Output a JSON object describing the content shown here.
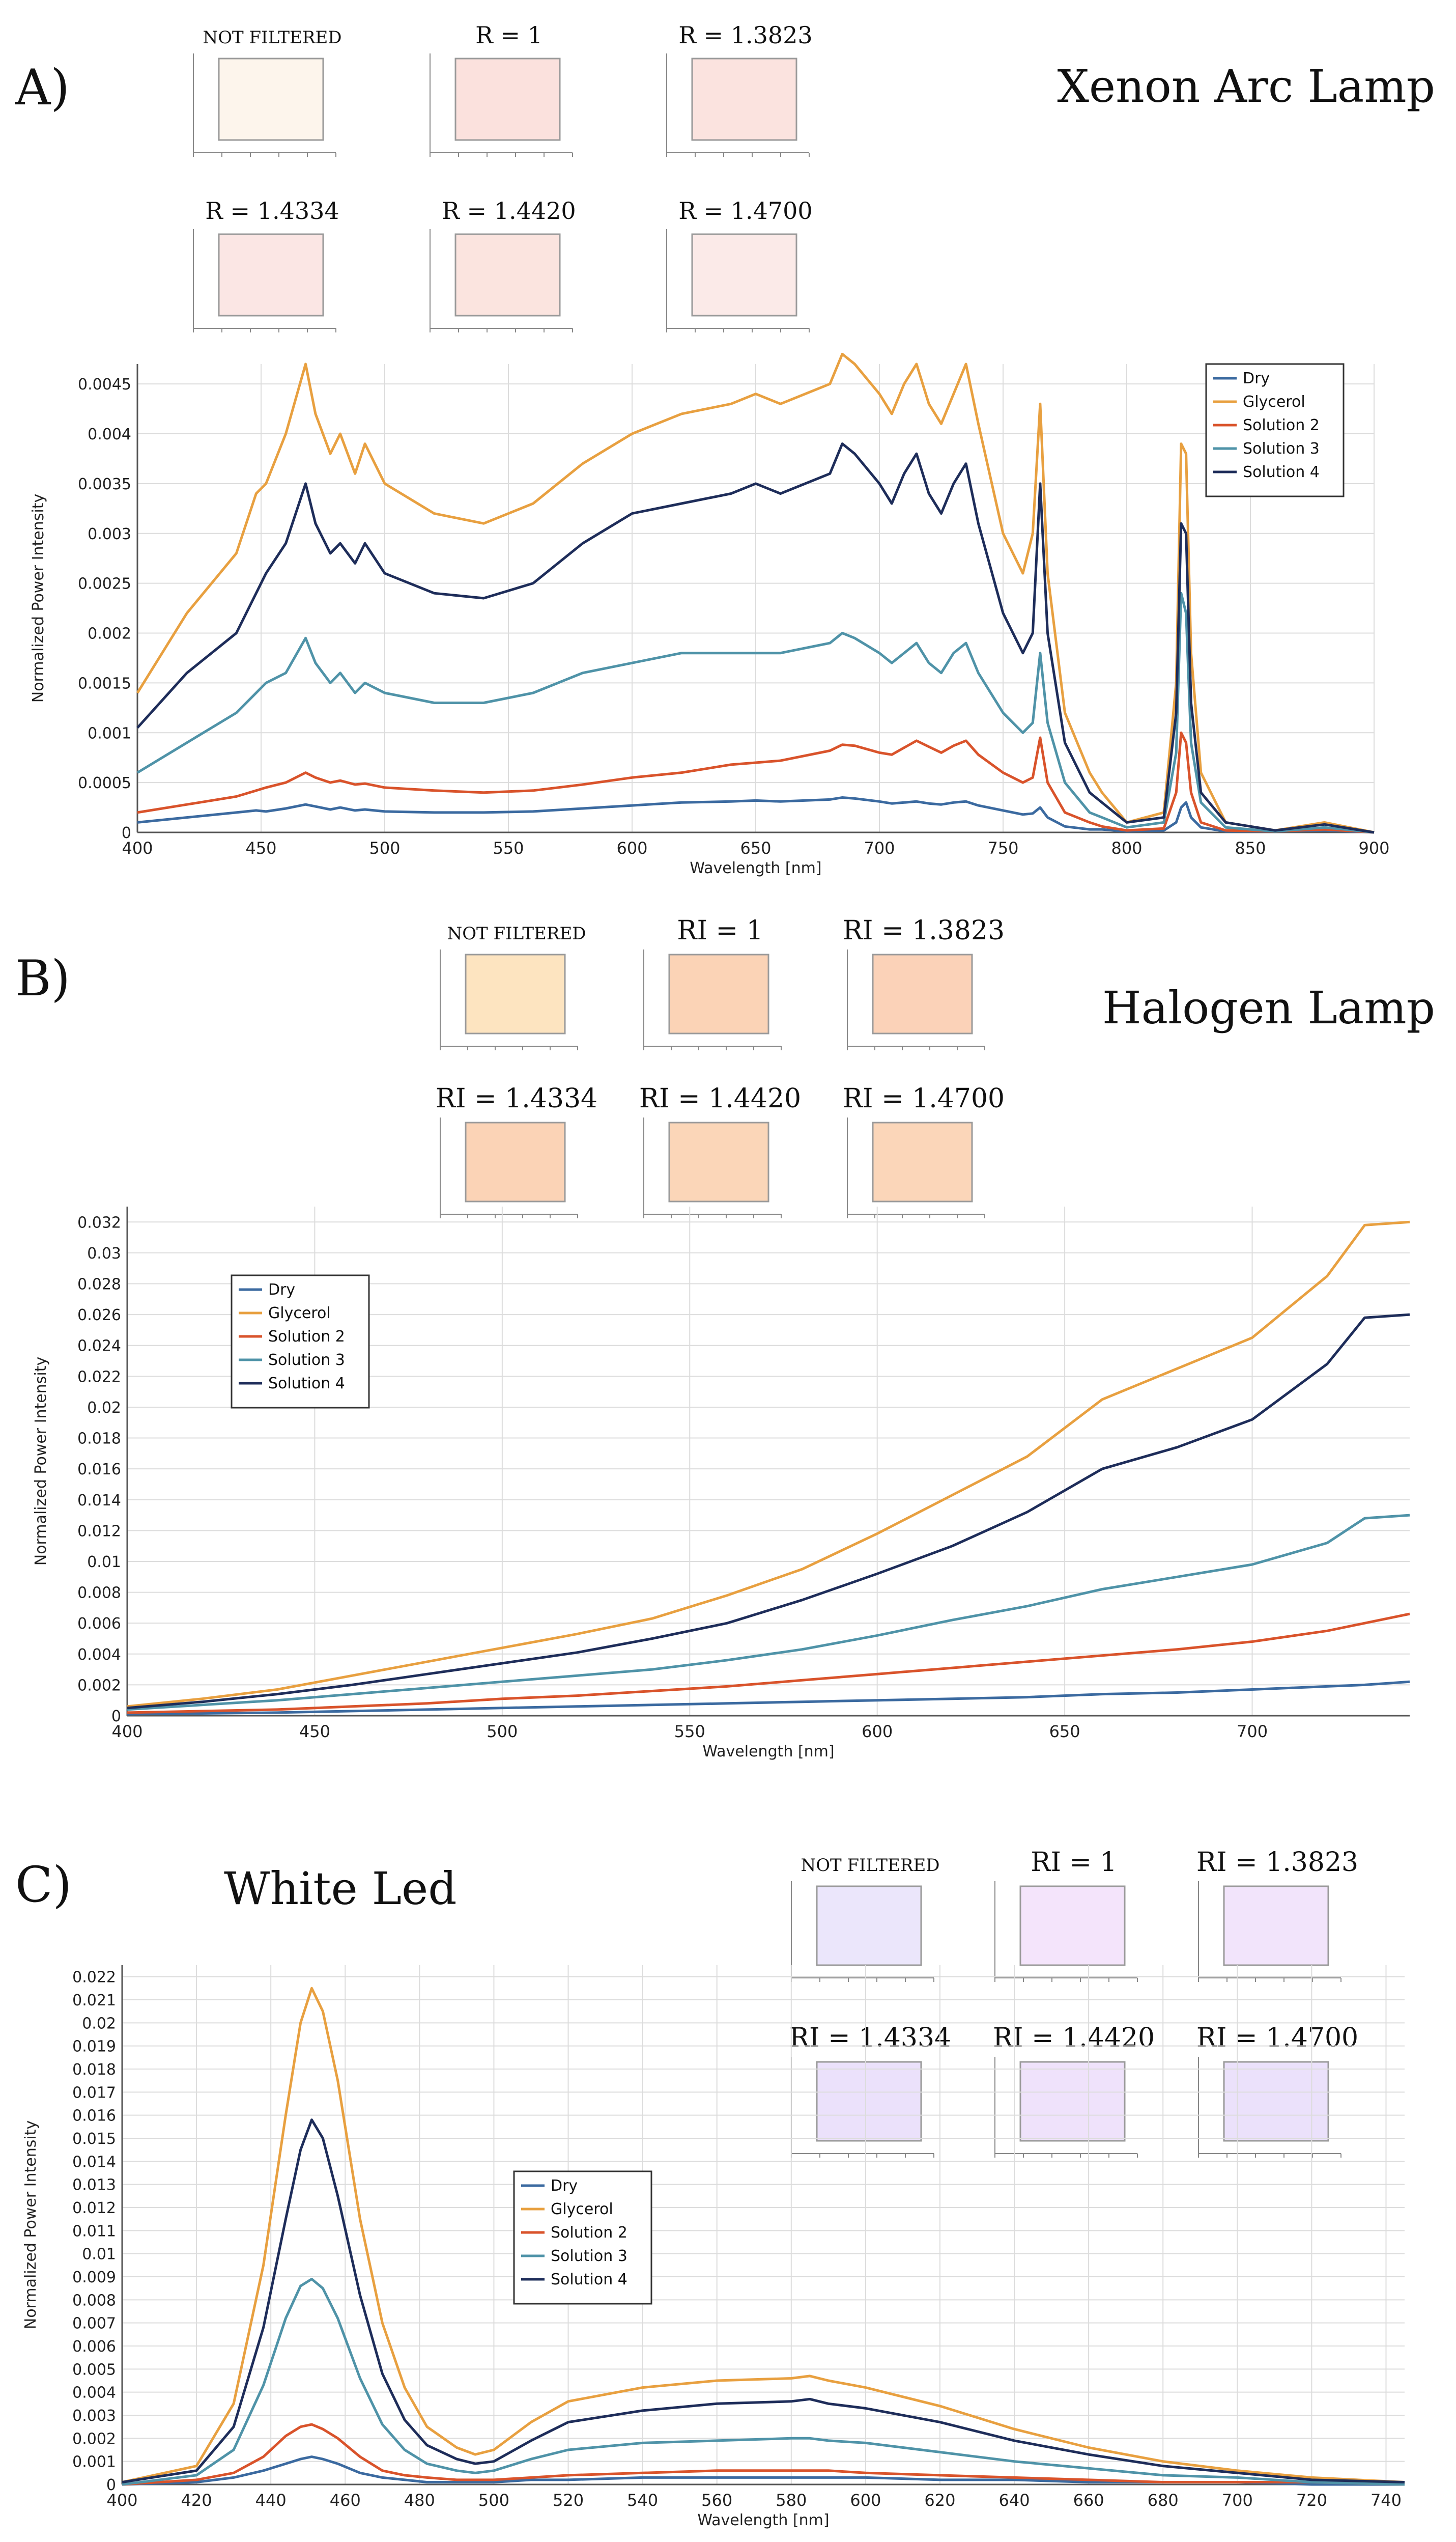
{
  "panels": [
    {
      "id": "A",
      "panel_label": "A)",
      "lamp_title": "Xenon Arc Lamp",
      "swatches": [
        {
          "label": "NOT FILTERED",
          "color": "#fdf5ec"
        },
        {
          "label": "R = 1",
          "color": "#fbe1dd"
        },
        {
          "label": "R = 1.3823",
          "color": "#fbe3df"
        },
        {
          "label": "R = 1.4334",
          "color": "#fbe6e4"
        },
        {
          "label": "R = 1.4420",
          "color": "#fbe4df"
        },
        {
          "label": "R = 1.4700",
          "color": "#fbeae8"
        }
      ]
    },
    {
      "id": "B",
      "panel_label": "B)",
      "lamp_title": "Halogen Lamp",
      "swatches": [
        {
          "label": "NOT FILTERED",
          "color": "#fde4c0"
        },
        {
          "label": "RI = 1",
          "color": "#fbd3b6"
        },
        {
          "label": "RI = 1.3823",
          "color": "#fbd2b8"
        },
        {
          "label": "RI = 1.4334",
          "color": "#fbd3b6"
        },
        {
          "label": "RI = 1.4420",
          "color": "#fbd6b8"
        },
        {
          "label": "RI = 1.4700",
          "color": "#fbd6b9"
        }
      ]
    },
    {
      "id": "C",
      "panel_label": "C)",
      "lamp_title": "White Led",
      "swatches": [
        {
          "label": "NOT FILTERED",
          "color": "#ebe6fb"
        },
        {
          "label": "RI = 1",
          "color": "#f4e4fb"
        },
        {
          "label": "RI = 1.3823",
          "color": "#f2e4fb"
        },
        {
          "label": "RI = 1.4334",
          "color": "#ebe1fb"
        },
        {
          "label": "RI = 1.4420",
          "color": "#efe2fb"
        },
        {
          "label": "RI = 1.4700",
          "color": "#ebe1fb"
        }
      ]
    }
  ],
  "series_colors": {
    "Dry": "#3b6aa0",
    "Glycerol": "#e8a040",
    "Solution 2": "#d9532b",
    "Solution 3": "#4f93a8",
    "Solution 4": "#1e2d5a"
  },
  "chart_data": [
    {
      "type": "line",
      "panel": "A",
      "title": "",
      "xlabel": "Wavelength [nm]",
      "ylabel": "Normalized Power Intensity",
      "xlim": [
        400,
        900
      ],
      "ylim": [
        0,
        0.0047
      ],
      "x_ticks": [
        "400",
        "450",
        "500",
        "550",
        "600",
        "650",
        "700",
        "750",
        "800",
        "850",
        "900"
      ],
      "y_ticks": [
        "0",
        "0.0005",
        "0.001",
        "0.0015",
        "0.002",
        "0.0025",
        "0.003",
        "0.0035",
        "0.004",
        "0.0045"
      ],
      "legend": [
        "Dry",
        "Glycerol",
        "Solution 2",
        "Solution 3",
        "Solution 4"
      ],
      "legend_position": "top-right",
      "x": [
        400,
        420,
        440,
        448,
        452,
        460,
        468,
        472,
        478,
        482,
        488,
        492,
        500,
        520,
        540,
        560,
        580,
        600,
        620,
        640,
        650,
        660,
        680,
        685,
        690,
        700,
        705,
        710,
        715,
        720,
        725,
        730,
        735,
        740,
        750,
        758,
        762,
        765,
        768,
        775,
        785,
        790,
        800,
        815,
        820,
        822,
        824,
        826,
        830,
        840,
        860,
        880,
        900
      ],
      "series": [
        {
          "name": "Dry",
          "values": [
            0.0001,
            0.00015,
            0.0002,
            0.00022,
            0.00021,
            0.00024,
            0.00028,
            0.00026,
            0.00023,
            0.00025,
            0.00022,
            0.00023,
            0.00021,
            0.0002,
            0.0002,
            0.00021,
            0.00024,
            0.00027,
            0.0003,
            0.00031,
            0.00032,
            0.00031,
            0.00033,
            0.00035,
            0.00034,
            0.00031,
            0.00029,
            0.0003,
            0.00031,
            0.00029,
            0.00028,
            0.0003,
            0.00031,
            0.00027,
            0.00022,
            0.00018,
            0.00019,
            0.00025,
            0.00015,
            6e-05,
            3e-05,
            3e-05,
            1e-05,
            2e-05,
            0.0001,
            0.00025,
            0.0003,
            0.00015,
            5e-05,
            1e-05,
            1e-05,
            2e-05,
            0
          ]
        },
        {
          "name": "Glycerol",
          "values": [
            0.0014,
            0.0022,
            0.0028,
            0.0034,
            0.0035,
            0.004,
            0.0047,
            0.0042,
            0.0038,
            0.004,
            0.0036,
            0.0039,
            0.0035,
            0.0032,
            0.0031,
            0.0033,
            0.0037,
            0.004,
            0.0042,
            0.0043,
            0.0044,
            0.0043,
            0.0045,
            0.0048,
            0.0047,
            0.0044,
            0.0042,
            0.0045,
            0.0047,
            0.0043,
            0.0041,
            0.0044,
            0.0047,
            0.0041,
            0.003,
            0.0026,
            0.003,
            0.0043,
            0.0026,
            0.0012,
            0.0006,
            0.0004,
            0.0001,
            0.0002,
            0.0015,
            0.0039,
            0.0038,
            0.0018,
            0.0006,
            0.0001,
            2e-05,
            0.0001,
            0
          ]
        },
        {
          "name": "Solution 2",
          "values": [
            0.0002,
            0.00028,
            0.00036,
            0.00042,
            0.00045,
            0.0005,
            0.0006,
            0.00055,
            0.0005,
            0.00052,
            0.00048,
            0.00049,
            0.00045,
            0.00042,
            0.0004,
            0.00042,
            0.00048,
            0.00055,
            0.0006,
            0.00068,
            0.0007,
            0.00072,
            0.00082,
            0.00088,
            0.00087,
            0.0008,
            0.00078,
            0.00085,
            0.00092,
            0.00086,
            0.0008,
            0.00087,
            0.00092,
            0.00078,
            0.0006,
            0.0005,
            0.00055,
            0.00095,
            0.0005,
            0.0002,
            0.0001,
            6e-05,
            2e-05,
            4e-05,
            0.0004,
            0.001,
            0.0009,
            0.0004,
            0.0001,
            2e-05,
            1e-05,
            3e-05,
            0
          ]
        },
        {
          "name": "Solution 3",
          "values": [
            0.0006,
            0.0009,
            0.0012,
            0.0014,
            0.0015,
            0.0016,
            0.00195,
            0.0017,
            0.0015,
            0.0016,
            0.0014,
            0.0015,
            0.0014,
            0.0013,
            0.0013,
            0.0014,
            0.0016,
            0.0017,
            0.0018,
            0.0018,
            0.0018,
            0.0018,
            0.0019,
            0.002,
            0.00195,
            0.0018,
            0.0017,
            0.0018,
            0.0019,
            0.0017,
            0.0016,
            0.0018,
            0.0019,
            0.0016,
            0.0012,
            0.001,
            0.0011,
            0.0018,
            0.0011,
            0.0005,
            0.0002,
            0.00015,
            5e-05,
            0.0001,
            0.0008,
            0.0024,
            0.0022,
            0.0009,
            0.0003,
            5e-05,
            1e-05,
            5e-05,
            0
          ]
        },
        {
          "name": "Solution 4",
          "values": [
            0.00105,
            0.0016,
            0.002,
            0.0024,
            0.0026,
            0.0029,
            0.0035,
            0.0031,
            0.0028,
            0.0029,
            0.0027,
            0.0029,
            0.0026,
            0.0024,
            0.00235,
            0.0025,
            0.0029,
            0.0032,
            0.0033,
            0.0034,
            0.0035,
            0.0034,
            0.0036,
            0.0039,
            0.0038,
            0.0035,
            0.0033,
            0.0036,
            0.0038,
            0.0034,
            0.0032,
            0.0035,
            0.0037,
            0.0031,
            0.0022,
            0.0018,
            0.002,
            0.0035,
            0.002,
            0.0009,
            0.0004,
            0.0003,
            0.0001,
            0.00015,
            0.0012,
            0.0031,
            0.003,
            0.0013,
            0.0004,
            0.0001,
            2e-05,
            8e-05,
            0
          ]
        }
      ]
    },
    {
      "type": "line",
      "panel": "B",
      "title": "",
      "xlabel": "Wavelength [nm]",
      "ylabel": "Normalized Power Intensity",
      "xlim": [
        400,
        742
      ],
      "ylim": [
        0,
        0.033
      ],
      "x_ticks": [
        "400",
        "450",
        "500",
        "550",
        "600",
        "650",
        "700"
      ],
      "y_ticks": [
        "0",
        "0.002",
        "0.004",
        "0.006",
        "0.008",
        "0.01",
        "0.012",
        "0.014",
        "0.016",
        "0.018",
        "0.02",
        "0.022",
        "0.024",
        "0.026",
        "0.028",
        "0.03",
        "0.032"
      ],
      "legend": [
        "Dry",
        "Glycerol",
        "Solution 2",
        "Solution 3",
        "Solution 4"
      ],
      "legend_position": "top-left",
      "x": [
        400,
        420,
        440,
        460,
        480,
        500,
        520,
        540,
        560,
        580,
        600,
        620,
        640,
        660,
        680,
        700,
        720,
        730,
        742
      ],
      "series": [
        {
          "name": "Dry",
          "values": [
            0.0001,
            0.00015,
            0.0002,
            0.0003,
            0.0004,
            0.0005,
            0.0006,
            0.0007,
            0.0008,
            0.0009,
            0.001,
            0.0011,
            0.0012,
            0.0014,
            0.0015,
            0.0017,
            0.0019,
            0.002,
            0.0022
          ]
        },
        {
          "name": "Glycerol",
          "values": [
            0.0006,
            0.0011,
            0.0017,
            0.0026,
            0.0035,
            0.0044,
            0.0053,
            0.0063,
            0.0078,
            0.0095,
            0.0118,
            0.0143,
            0.0168,
            0.0205,
            0.0225,
            0.0245,
            0.0285,
            0.0318,
            0.032
          ]
        },
        {
          "name": "Solution 2",
          "values": [
            0.0002,
            0.0003,
            0.0004,
            0.0006,
            0.0008,
            0.0011,
            0.0013,
            0.0016,
            0.0019,
            0.0023,
            0.0027,
            0.0031,
            0.0035,
            0.0039,
            0.0043,
            0.0048,
            0.0055,
            0.006,
            0.0066
          ]
        },
        {
          "name": "Solution 3",
          "values": [
            0.0004,
            0.0007,
            0.001,
            0.0014,
            0.0018,
            0.0022,
            0.0026,
            0.003,
            0.0036,
            0.0043,
            0.0052,
            0.0062,
            0.0071,
            0.0082,
            0.009,
            0.0098,
            0.0112,
            0.0128,
            0.013
          ]
        },
        {
          "name": "Solution 4",
          "values": [
            0.0005,
            0.0009,
            0.0014,
            0.002,
            0.0027,
            0.0034,
            0.0041,
            0.005,
            0.006,
            0.0075,
            0.0092,
            0.011,
            0.0132,
            0.016,
            0.0174,
            0.0192,
            0.0228,
            0.0258,
            0.026
          ]
        }
      ]
    },
    {
      "type": "line",
      "panel": "C",
      "title": "",
      "xlabel": "Wavelength [nm]",
      "ylabel": "Normalized Power Intensity",
      "xlim": [
        400,
        745
      ],
      "ylim": [
        0,
        0.0225
      ],
      "x_ticks": [
        "400",
        "420",
        "440",
        "460",
        "480",
        "500",
        "520",
        "540",
        "560",
        "580",
        "600",
        "620",
        "640",
        "660",
        "680",
        "700",
        "720",
        "740"
      ],
      "y_ticks": [
        "0",
        "0.001",
        "0.002",
        "0.003",
        "0.004",
        "0.005",
        "0.006",
        "0.007",
        "0.008",
        "0.009",
        "0.01",
        "0.011",
        "0.012",
        "0.013",
        "0.014",
        "0.015",
        "0.016",
        "0.017",
        "0.018",
        "0.019",
        "0.02",
        "0.021",
        "0.022"
      ],
      "legend": [
        "Dry",
        "Glycerol",
        "Solution 2",
        "Solution 3",
        "Solution 4"
      ],
      "legend_position": "center",
      "x": [
        400,
        420,
        430,
        438,
        444,
        448,
        451,
        454,
        458,
        464,
        470,
        476,
        482,
        490,
        495,
        500,
        510,
        520,
        540,
        560,
        580,
        585,
        590,
        600,
        620,
        640,
        660,
        680,
        700,
        720,
        745
      ],
      "series": [
        {
          "name": "Dry",
          "values": [
            0,
            0.0001,
            0.0003,
            0.0006,
            0.0009,
            0.0011,
            0.0012,
            0.0011,
            0.0009,
            0.0005,
            0.0003,
            0.0002,
            0.0001,
            0.0001,
            0.0001,
            0.0001,
            0.0002,
            0.0002,
            0.0003,
            0.0003,
            0.0003,
            0.0003,
            0.0003,
            0.0003,
            0.0002,
            0.0002,
            0.0001,
            0.0001,
            0.0001,
            0,
            0
          ]
        },
        {
          "name": "Glycerol",
          "values": [
            0.0001,
            0.0008,
            0.0035,
            0.0095,
            0.016,
            0.02,
            0.0215,
            0.0205,
            0.0175,
            0.0115,
            0.007,
            0.0042,
            0.0025,
            0.0016,
            0.0013,
            0.0015,
            0.0027,
            0.0036,
            0.0042,
            0.0045,
            0.0046,
            0.0047,
            0.0045,
            0.0042,
            0.0034,
            0.0024,
            0.0016,
            0.001,
            0.0006,
            0.0003,
            0.0001
          ]
        },
        {
          "name": "Solution 2",
          "values": [
            0,
            0.0002,
            0.0005,
            0.0012,
            0.0021,
            0.0025,
            0.0026,
            0.0024,
            0.002,
            0.0012,
            0.0006,
            0.0004,
            0.0003,
            0.0002,
            0.0002,
            0.0002,
            0.0003,
            0.0004,
            0.0005,
            0.0006,
            0.0006,
            0.0006,
            0.0006,
            0.0005,
            0.0004,
            0.0003,
            0.0002,
            0.0001,
            0.0001,
            0.0001,
            0
          ]
        },
        {
          "name": "Solution 3",
          "values": [
            0,
            0.0004,
            0.0015,
            0.0043,
            0.0072,
            0.0086,
            0.0089,
            0.0085,
            0.0072,
            0.0046,
            0.0026,
            0.0015,
            0.0009,
            0.0006,
            0.0005,
            0.0006,
            0.0011,
            0.0015,
            0.0018,
            0.0019,
            0.002,
            0.002,
            0.0019,
            0.0018,
            0.0014,
            0.001,
            0.0007,
            0.0004,
            0.0003,
            0.0001,
            0
          ]
        },
        {
          "name": "Solution 4",
          "values": [
            0.0001,
            0.0006,
            0.0025,
            0.0068,
            0.0115,
            0.0145,
            0.0158,
            0.015,
            0.0125,
            0.0082,
            0.0048,
            0.0028,
            0.0017,
            0.0011,
            0.0009,
            0.001,
            0.0019,
            0.0027,
            0.0032,
            0.0035,
            0.0036,
            0.0037,
            0.0035,
            0.0033,
            0.0027,
            0.0019,
            0.0013,
            0.0008,
            0.0005,
            0.0002,
            0.0001
          ]
        }
      ]
    }
  ]
}
